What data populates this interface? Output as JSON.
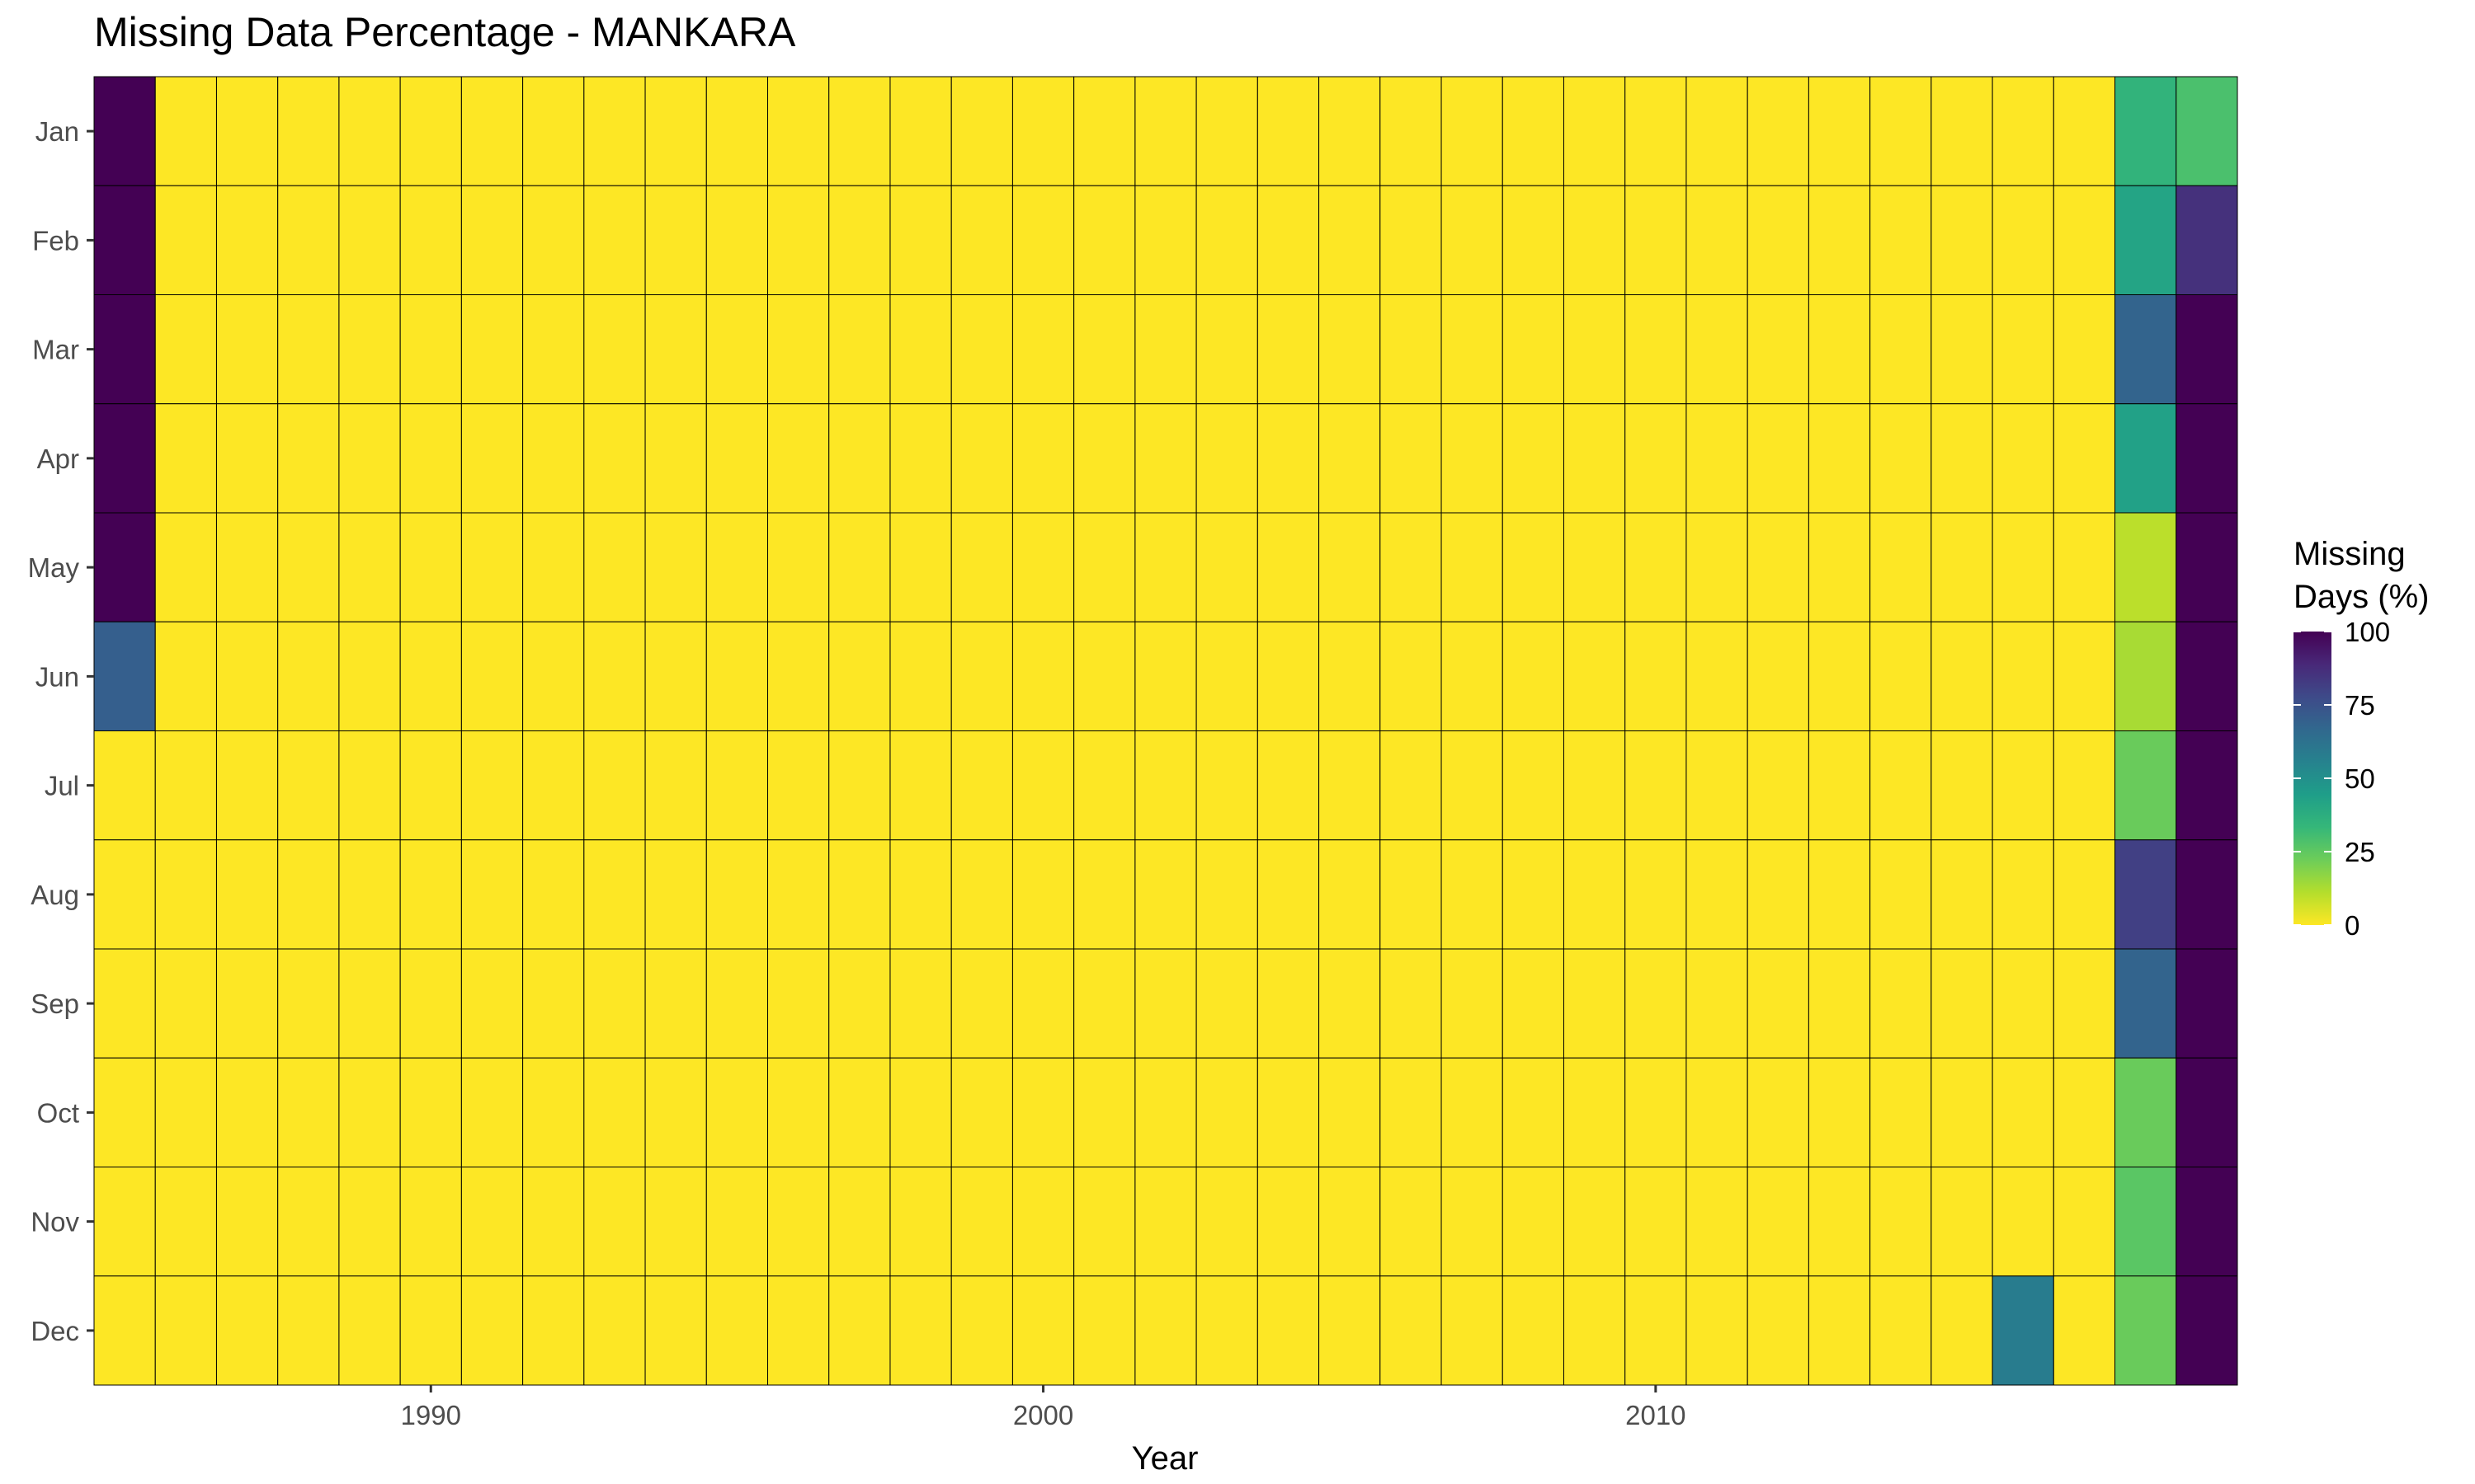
{
  "chart_data": {
    "type": "heatmap",
    "title": "Missing Data Percentage - MANKARA",
    "xlabel": "Year",
    "ylabel": "",
    "years": [
      1985,
      1986,
      1987,
      1988,
      1989,
      1990,
      1991,
      1992,
      1993,
      1994,
      1995,
      1996,
      1997,
      1998,
      1999,
      2000,
      2001,
      2002,
      2003,
      2004,
      2005,
      2006,
      2007,
      2008,
      2009,
      2010,
      2011,
      2012,
      2013,
      2014,
      2015,
      2016,
      2017,
      2018,
      2019
    ],
    "months": [
      "Jan",
      "Feb",
      "Mar",
      "Apr",
      "May",
      "Jun",
      "Jul",
      "Aug",
      "Sep",
      "Oct",
      "Nov",
      "Dec"
    ],
    "x_ticks": [
      1990,
      2000,
      2010
    ],
    "x_tick_labels": [
      "1990",
      "2000",
      "2010"
    ],
    "grid": false,
    "default_value": 0,
    "nonzero_cells": [
      {
        "year": 1985,
        "month": "Jan",
        "value": 100
      },
      {
        "year": 1985,
        "month": "Feb",
        "value": 100
      },
      {
        "year": 1985,
        "month": "Mar",
        "value": 100
      },
      {
        "year": 1985,
        "month": "Apr",
        "value": 100
      },
      {
        "year": 1985,
        "month": "May",
        "value": 100
      },
      {
        "year": 1985,
        "month": "Jun",
        "value": 70
      },
      {
        "year": 2016,
        "month": "Dec",
        "value": 58
      },
      {
        "year": 2018,
        "month": "Jan",
        "value": 35
      },
      {
        "year": 2018,
        "month": "Feb",
        "value": 42
      },
      {
        "year": 2018,
        "month": "Mar",
        "value": 68
      },
      {
        "year": 2018,
        "month": "Apr",
        "value": 43
      },
      {
        "year": 2018,
        "month": "May",
        "value": 10
      },
      {
        "year": 2018,
        "month": "Jun",
        "value": 13
      },
      {
        "year": 2018,
        "month": "Jul",
        "value": 23
      },
      {
        "year": 2018,
        "month": "Aug",
        "value": 81
      },
      {
        "year": 2018,
        "month": "Sep",
        "value": 68
      },
      {
        "year": 2018,
        "month": "Oct",
        "value": 23
      },
      {
        "year": 2018,
        "month": "Nov",
        "value": 26
      },
      {
        "year": 2018,
        "month": "Dec",
        "value": 23
      },
      {
        "year": 2019,
        "month": "Jan",
        "value": 29
      },
      {
        "year": 2019,
        "month": "Feb",
        "value": 86
      },
      {
        "year": 2019,
        "month": "Mar",
        "value": 100
      },
      {
        "year": 2019,
        "month": "Apr",
        "value": 100
      },
      {
        "year": 2019,
        "month": "May",
        "value": 100
      },
      {
        "year": 2019,
        "month": "Jun",
        "value": 100
      },
      {
        "year": 2019,
        "month": "Jul",
        "value": 100
      },
      {
        "year": 2019,
        "month": "Aug",
        "value": 100
      },
      {
        "year": 2019,
        "month": "Sep",
        "value": 100
      },
      {
        "year": 2019,
        "month": "Oct",
        "value": 100
      },
      {
        "year": 2019,
        "month": "Nov",
        "value": 100
      },
      {
        "year": 2019,
        "month": "Dec",
        "value": 100
      }
    ],
    "legend": {
      "title_lines": [
        "Missing",
        "Days (%)"
      ],
      "ticks": [
        100,
        75,
        50,
        25,
        0
      ],
      "tick_labels": [
        "100",
        "75",
        "50",
        "25",
        "0"
      ],
      "range": [
        0,
        100
      ],
      "placement": "right",
      "colormap": "viridis (reversed)"
    },
    "colors": {
      "cell_border": "#000000",
      "scale_stops": [
        "#FDE725",
        "#B4DE2C",
        "#6DCD59",
        "#35B779",
        "#1F9E89",
        "#26828E",
        "#31688E",
        "#3E4A89",
        "#482878",
        "#440154"
      ]
    }
  }
}
